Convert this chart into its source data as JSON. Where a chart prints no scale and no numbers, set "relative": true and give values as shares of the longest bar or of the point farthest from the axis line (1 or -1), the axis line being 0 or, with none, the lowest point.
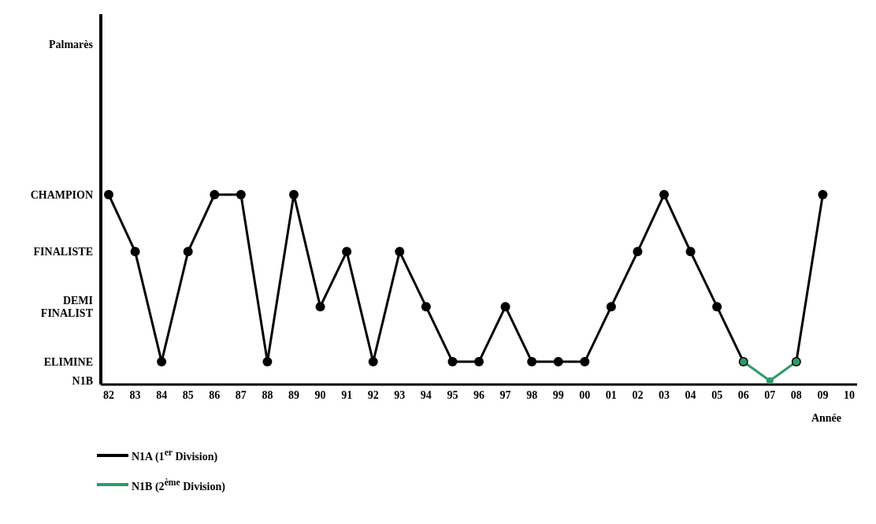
{
  "chart_data": {
    "type": "line",
    "relative": true,
    "xlabel": "Année",
    "categories": [
      "82",
      "83",
      "84",
      "85",
      "86",
      "87",
      "88",
      "89",
      "90",
      "91",
      "92",
      "93",
      "94",
      "95",
      "96",
      "97",
      "98",
      "99",
      "00",
      "01",
      "02",
      "03",
      "04",
      "05",
      "06",
      "07",
      "08",
      "09",
      "10"
    ],
    "annotations": [
      "Palmarès",
      "CHAMPION",
      "FINALISTE",
      "DEMI FINALIST",
      "ELIMINE",
      "N1B"
    ],
    "series": [
      {
        "name": "N1A (1$^{er}$ Division)",
        "color": "#000000",
        "values": [
          1,
          0.7,
          0.12,
          0.7,
          1,
          1,
          0.12,
          1,
          0.41,
          0.7,
          0.12,
          0.7,
          0.41,
          0.12,
          0.12,
          0.41,
          0.12,
          0.12,
          0.12,
          0.41,
          0.7,
          1,
          0.7,
          0.41,
          0.12,
          null,
          0.12,
          1,
          null
        ]
      },
      {
        "name": "N1B (2$^{ème}$ Division)",
        "color": "#2e9a6a",
        "values": [
          null,
          null,
          null,
          null,
          null,
          null,
          null,
          null,
          null,
          null,
          null,
          null,
          null,
          null,
          null,
          null,
          null,
          null,
          null,
          null,
          null,
          null,
          null,
          null,
          0.12,
          0.02,
          0.12,
          null,
          null
        ]
      }
    ],
    "grid": false,
    "legend": "bottom left",
    "marker": "circle",
    "line_style": "solid"
  }
}
